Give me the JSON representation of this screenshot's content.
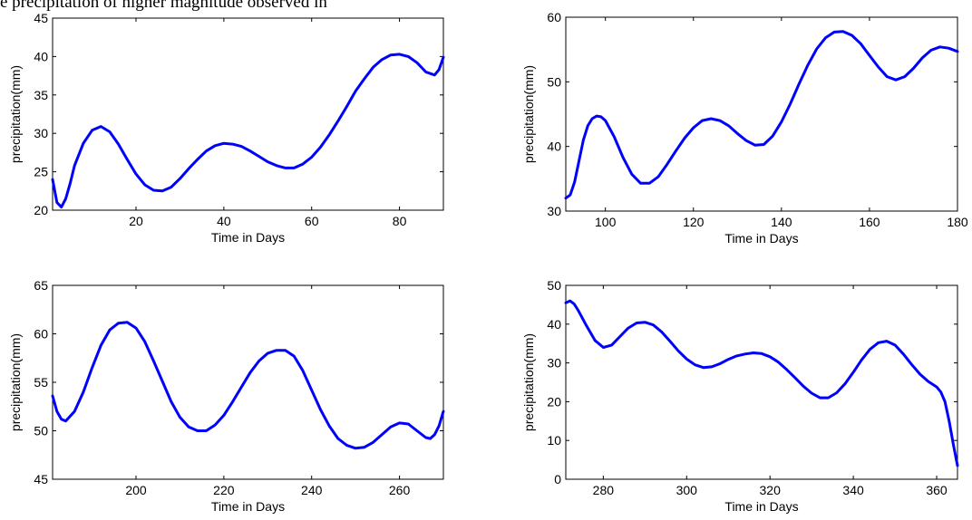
{
  "caption_fragment": "e precipitation of higher magnitude observed in",
  "chart_data": [
    {
      "type": "line",
      "xlabel": "Time in Days",
      "ylabel": "precipitation(mm)",
      "xlim": [
        1,
        90
      ],
      "ylim": [
        20,
        45
      ],
      "xticks": [
        20,
        40,
        60,
        80
      ],
      "yticks": [
        20,
        25,
        30,
        35,
        40,
        45
      ],
      "color": "#0000ff",
      "x": [
        1,
        2,
        3,
        4,
        5,
        6,
        8,
        10,
        12,
        14,
        16,
        18,
        20,
        22,
        24,
        26,
        28,
        30,
        32,
        34,
        36,
        38,
        40,
        42,
        44,
        46,
        48,
        50,
        52,
        54,
        56,
        58,
        60,
        62,
        64,
        66,
        68,
        70,
        72,
        74,
        76,
        78,
        80,
        82,
        84,
        86,
        88,
        89,
        90
      ],
      "values": [
        24.0,
        21.0,
        20.4,
        21.5,
        23.5,
        25.8,
        28.7,
        30.4,
        30.9,
        30.2,
        28.6,
        26.6,
        24.7,
        23.3,
        22.6,
        22.5,
        23.0,
        24.1,
        25.4,
        26.6,
        27.7,
        28.4,
        28.7,
        28.6,
        28.3,
        27.7,
        27.0,
        26.3,
        25.8,
        25.5,
        25.5,
        26.0,
        26.9,
        28.2,
        29.8,
        31.6,
        33.5,
        35.5,
        37.1,
        38.6,
        39.6,
        40.2,
        40.3,
        40.0,
        39.2,
        38.0,
        37.6,
        38.3,
        39.9
      ]
    },
    {
      "type": "line",
      "xlabel": "Time in Days",
      "ylabel": "precipitation(mm)",
      "xlim": [
        91,
        180
      ],
      "ylim": [
        30,
        60
      ],
      "xticks": [
        100,
        120,
        140,
        160,
        180
      ],
      "yticks": [
        30,
        40,
        50,
        60
      ],
      "color": "#0000ff",
      "x": [
        91,
        92,
        93,
        94,
        95,
        96,
        97,
        98,
        99,
        100,
        102,
        104,
        106,
        108,
        110,
        112,
        114,
        116,
        118,
        120,
        122,
        124,
        126,
        128,
        130,
        132,
        134,
        136,
        138,
        140,
        142,
        144,
        146,
        148,
        150,
        152,
        154,
        156,
        158,
        160,
        162,
        164,
        166,
        168,
        170,
        172,
        174,
        176,
        178,
        180
      ],
      "values": [
        32.0,
        32.5,
        34.5,
        37.8,
        41.0,
        43.2,
        44.3,
        44.7,
        44.6,
        44.0,
        41.5,
        38.3,
        35.7,
        34.3,
        34.3,
        35.3,
        37.2,
        39.3,
        41.3,
        42.9,
        44.0,
        44.3,
        44.0,
        43.2,
        42.0,
        40.9,
        40.2,
        40.3,
        41.6,
        43.8,
        46.6,
        49.7,
        52.6,
        55.1,
        56.8,
        57.7,
        57.8,
        57.2,
        55.9,
        54.1,
        52.3,
        50.8,
        50.3,
        50.8,
        52.1,
        53.7,
        54.9,
        55.4,
        55.2,
        54.7
      ]
    },
    {
      "type": "line",
      "xlabel": "Time in Days",
      "ylabel": "precipitation(mm)",
      "xlim": [
        181,
        270
      ],
      "ylim": [
        45,
        65
      ],
      "xticks": [
        200,
        220,
        240,
        260
      ],
      "yticks": [
        45,
        50,
        55,
        60,
        65
      ],
      "color": "#0000ff",
      "x": [
        181,
        182,
        183,
        184,
        186,
        188,
        190,
        192,
        194,
        196,
        198,
        200,
        202,
        204,
        206,
        208,
        210,
        212,
        214,
        216,
        218,
        220,
        222,
        224,
        226,
        228,
        230,
        232,
        234,
        236,
        238,
        240,
        242,
        244,
        246,
        248,
        250,
        252,
        254,
        256,
        258,
        260,
        262,
        264,
        266,
        267,
        268,
        269,
        270
      ],
      "values": [
        53.6,
        52.0,
        51.2,
        51.0,
        52.0,
        54.0,
        56.5,
        58.8,
        60.4,
        61.1,
        61.2,
        60.6,
        59.2,
        57.2,
        55.1,
        53.0,
        51.4,
        50.4,
        50.0,
        50.0,
        50.6,
        51.6,
        53.0,
        54.5,
        56.0,
        57.2,
        58.0,
        58.3,
        58.3,
        57.7,
        56.2,
        54.2,
        52.2,
        50.5,
        49.2,
        48.5,
        48.2,
        48.3,
        48.8,
        49.6,
        50.4,
        50.8,
        50.7,
        50.0,
        49.3,
        49.2,
        49.6,
        50.5,
        52.0
      ]
    },
    {
      "type": "line",
      "xlabel": "Time in Days",
      "ylabel": "precipitation(mm)",
      "xlim": [
        271,
        365
      ],
      "ylim": [
        0,
        50
      ],
      "xticks": [
        280,
        300,
        320,
        340,
        360
      ],
      "yticks": [
        0,
        10,
        20,
        30,
        40,
        50
      ],
      "color": "#0000ff",
      "x": [
        271,
        272,
        273,
        274,
        276,
        278,
        280,
        282,
        284,
        286,
        288,
        290,
        292,
        294,
        296,
        298,
        300,
        302,
        304,
        306,
        308,
        310,
        312,
        314,
        316,
        318,
        320,
        322,
        324,
        326,
        328,
        330,
        332,
        334,
        336,
        338,
        340,
        342,
        344,
        346,
        348,
        350,
        352,
        354,
        356,
        358,
        360,
        361,
        362,
        363,
        364,
        365
      ],
      "values": [
        45.5,
        46.0,
        45.2,
        43.5,
        39.5,
        35.8,
        34.0,
        34.6,
        36.8,
        39.0,
        40.3,
        40.5,
        39.8,
        38.0,
        35.6,
        33.1,
        31.0,
        29.5,
        28.8,
        29.0,
        29.8,
        30.9,
        31.8,
        32.3,
        32.6,
        32.4,
        31.6,
        30.2,
        28.3,
        26.2,
        24.0,
        22.2,
        21.0,
        21.0,
        22.3,
        24.6,
        27.6,
        30.8,
        33.5,
        35.2,
        35.6,
        34.6,
        32.3,
        29.6,
        27.1,
        25.2,
        23.8,
        22.5,
        20.0,
        15.0,
        9.0,
        3.5
      ]
    }
  ]
}
